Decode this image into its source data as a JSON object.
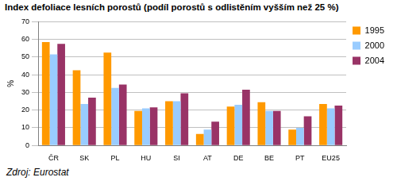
{
  "chart_data": {
    "type": "bar",
    "title": "Index defoliace lesních porostů (podíl porostů s odlistěním vyšším než 25 %)",
    "y_label": "%",
    "annotations": [
      "Zdroj: Eurostat"
    ],
    "categories": [
      "ČR",
      "SK",
      "PL",
      "HU",
      "SI",
      "AT",
      "DE",
      "BE",
      "PT",
      "EU25"
    ],
    "series": [
      {
        "name": "1995",
        "color": "#ff9900",
        "values": [
          58.5,
          42.5,
          52.5,
          19.5,
          25,
          6.5,
          22,
          24.5,
          9,
          23.5
        ]
      },
      {
        "name": "2000",
        "color": "#99ccff",
        "values": [
          51.5,
          23.5,
          32.5,
          21,
          25,
          9,
          23,
          19.5,
          10,
          21
        ]
      },
      {
        "name": "2004",
        "color": "#993366",
        "values": [
          57.5,
          27,
          34.5,
          21.5,
          29.5,
          13.5,
          31.5,
          19.5,
          16.5,
          22.5
        ]
      }
    ],
    "ylim": [
      0,
      70
    ],
    "yticks": [
      0,
      10,
      20,
      30,
      40,
      50,
      60,
      70
    ],
    "grid": true,
    "legend": "right"
  }
}
